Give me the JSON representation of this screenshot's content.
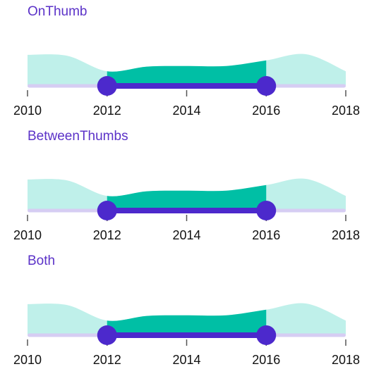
{
  "colors": {
    "title": "#5b32c8",
    "area_inactive": "#bff0ea",
    "area_active": "#00bfa5",
    "track_inactive": "#d6cdf3",
    "track_active": "#4c29cc",
    "thumb": "#4c29cc",
    "tick": "#555555"
  },
  "chart_data": [
    {
      "type": "area",
      "title": "OnThumb",
      "x": [
        2010,
        2011,
        2012,
        2013,
        2014,
        2015,
        2016,
        2017,
        2018
      ],
      "y": [
        0.98,
        0.95,
        0.45,
        0.6,
        0.62,
        0.62,
        0.8,
        1.0,
        0.45
      ],
      "xlim": [
        2010,
        2018
      ],
      "xticks": [
        "2010",
        "2012",
        "2014",
        "2016",
        "2018"
      ],
      "selected_range": [
        2012,
        2016
      ]
    },
    {
      "type": "area",
      "title": "BetweenThumbs",
      "x": [
        2010,
        2011,
        2012,
        2013,
        2014,
        2015,
        2016,
        2017,
        2018
      ],
      "y": [
        0.98,
        0.95,
        0.45,
        0.6,
        0.62,
        0.62,
        0.8,
        1.0,
        0.45
      ],
      "xlim": [
        2010,
        2018
      ],
      "xticks": [
        "2010",
        "2012",
        "2014",
        "2016",
        "2018"
      ],
      "selected_range": [
        2012,
        2016
      ]
    },
    {
      "type": "area",
      "title": "Both",
      "x": [
        2010,
        2011,
        2012,
        2013,
        2014,
        2015,
        2016,
        2017,
        2018
      ],
      "y": [
        0.98,
        0.95,
        0.45,
        0.6,
        0.62,
        0.62,
        0.8,
        1.0,
        0.45
      ],
      "xlim": [
        2010,
        2018
      ],
      "xticks": [
        "2010",
        "2012",
        "2014",
        "2016",
        "2018"
      ],
      "selected_range": [
        2012,
        2016
      ]
    }
  ]
}
